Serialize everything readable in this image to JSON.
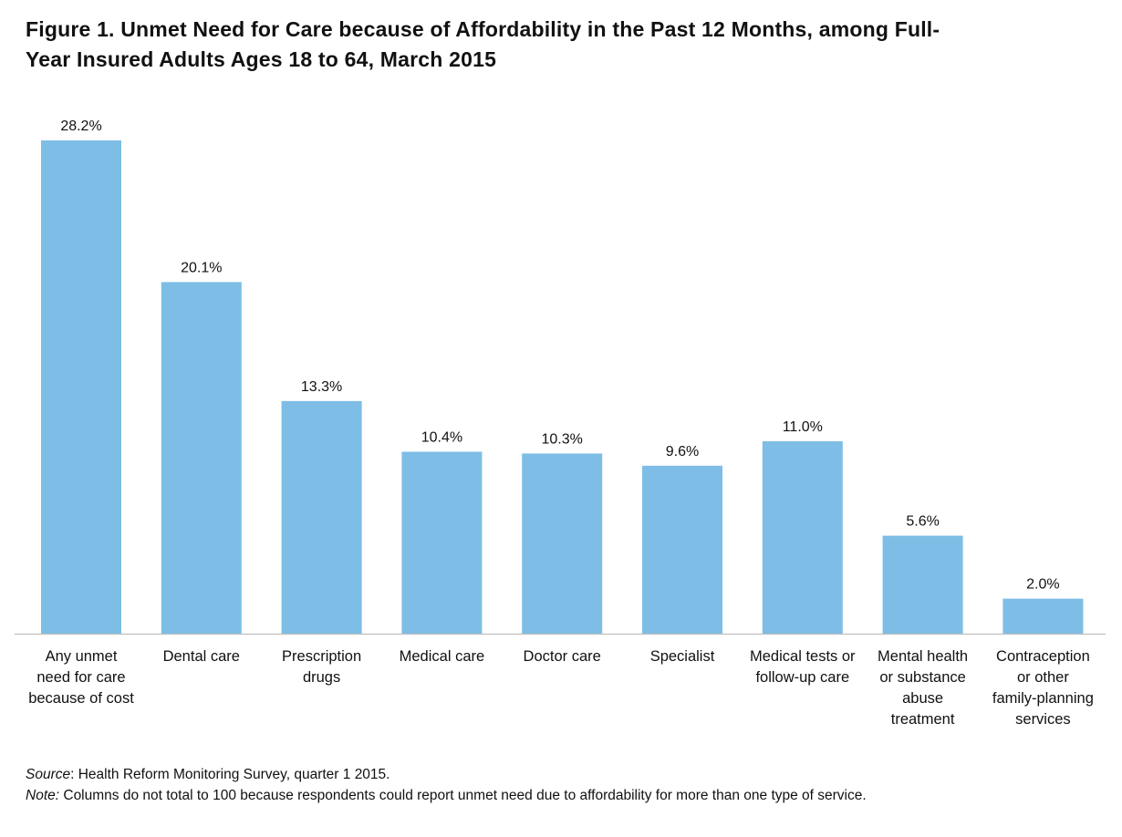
{
  "title_line1": "Figure 1. Unmet Need for Care because of Affordability in the Past 12 Months, among Full-",
  "title_line2": "Year Insured Adults Ages 18 to 64,  March 2015",
  "chart_data": {
    "type": "bar",
    "title": "Figure 1. Unmet Need for Care because of Affordability in the Past 12 Months, among Full-Year Insured Adults Ages 18 to 64,  March 2015",
    "categories": [
      [
        "Any unmet",
        "need for care",
        "because of cost"
      ],
      [
        "Dental care"
      ],
      [
        "Prescription",
        "drugs"
      ],
      [
        "Medical care"
      ],
      [
        "Doctor care"
      ],
      [
        "Specialist"
      ],
      [
        "Medical tests or",
        "follow-up care"
      ],
      [
        "Mental health",
        "or substance",
        "abuse",
        "treatment"
      ],
      [
        "Contraception",
        "or other",
        "family-planning",
        "services"
      ]
    ],
    "values": [
      28.2,
      20.1,
      13.3,
      10.4,
      10.3,
      9.6,
      11.0,
      5.6,
      2.0
    ],
    "value_labels": [
      "28.2%",
      "20.1%",
      "13.3%",
      "10.4%",
      "10.3%",
      "9.6%",
      "11.0%",
      "5.6%",
      "2.0%"
    ],
    "ylim": [
      0,
      28.2
    ],
    "grid": false,
    "legend": "none",
    "bar_color": "#7dbde6",
    "xlabel": "",
    "ylabel": ""
  },
  "footnotes": {
    "source_label": "Source",
    "source_text": ": Health Reform Monitoring Survey,  quarter 1 2015.",
    "note_label": "Note:",
    "note_text": " Columns do not total to 100 because respondents could report unmet need due to affordability for more than one type of service."
  }
}
